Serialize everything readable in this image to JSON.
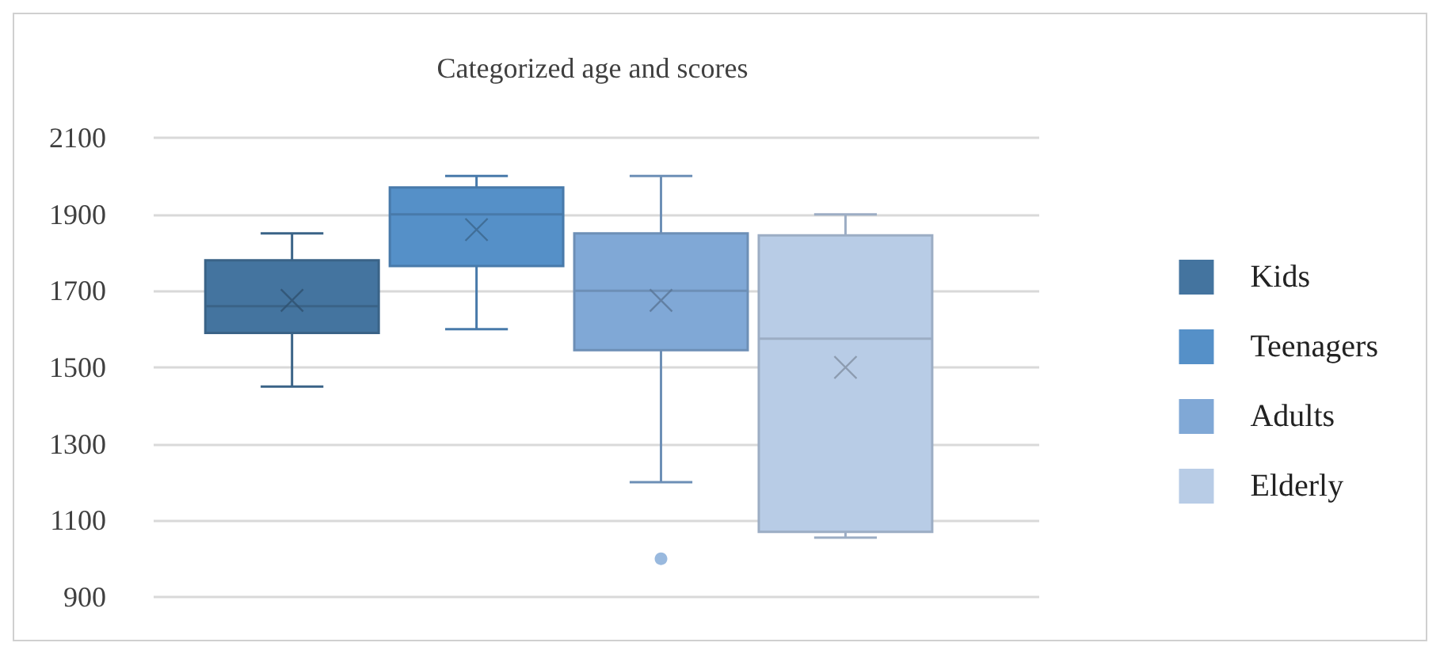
{
  "chart_data": {
    "type": "box",
    "title": "Categorized age and scores",
    "categories": [
      null
    ],
    "series": [
      {
        "name": "Kids",
        "color": "#44749f",
        "boxes": [
          {
            "low": 1450,
            "q1": 1590,
            "median": 1660,
            "q3": 1780,
            "high": 1850,
            "mean": 1675
          }
        ]
      },
      {
        "name": "Teenagers",
        "color": "#5590c8",
        "boxes": [
          {
            "low": 1600,
            "q1": 1765,
            "median": 1900,
            "q3": 1970,
            "high": 2000,
            "mean": 1860
          }
        ]
      },
      {
        "name": "Adults",
        "color": "#80a8d6",
        "boxes": [
          {
            "low": 1200,
            "q1": 1545,
            "median": 1700,
            "q3": 1850,
            "high": 2000,
            "mean": 1675,
            "outliers": [
              1000
            ]
          }
        ]
      },
      {
        "name": "Elderly",
        "color": "#b8cce6",
        "boxes": [
          {
            "low": 1055,
            "q1": 1070,
            "median": 1575,
            "q3": 1845,
            "high": 1900,
            "mean": 1500
          }
        ]
      }
    ],
    "ylim": [
      900,
      2100
    ],
    "yticks": [
      900,
      1100,
      1300,
      1500,
      1700,
      1900,
      2100
    ],
    "grid": "y",
    "legend": "right"
  }
}
